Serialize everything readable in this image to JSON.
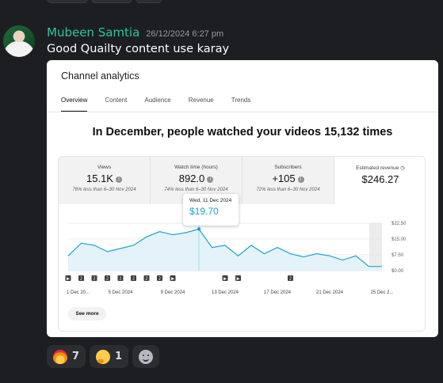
{
  "message": {
    "author": "Mubeen Samtia",
    "timestamp": "26/12/2024 6:27 pm",
    "text": "Good Quailty content use karay"
  },
  "embed": {
    "title": "Channel analytics",
    "tabs": [
      "Overview",
      "Content",
      "Audience",
      "Revenue",
      "Trends"
    ],
    "active_tab": "Overview",
    "headline": "In December, people watched your videos 15,132 times",
    "stats": [
      {
        "label": "Views",
        "value": "15.1K",
        "sub": "76% less than 6–30 Nov 2024"
      },
      {
        "label": "Watch time (hours)",
        "value": "892.0",
        "sub": "74% less than 6–30 Nov 2024"
      },
      {
        "label": "Subscribers",
        "value": "+105",
        "sub": "72% less than 6–30 Nov 2024"
      },
      {
        "label": "Estimated revenue",
        "value": "$246.27",
        "sub": ""
      }
    ],
    "see_more_label": "See more"
  },
  "chart_data": {
    "type": "area",
    "series": [
      {
        "values": [
          7.0,
          13.0,
          12.0,
          9.0,
          10.5,
          12.0,
          16.0,
          18.5,
          17.0,
          18.0,
          19.7,
          11.0,
          12.0,
          7.0,
          12.0,
          8.0,
          11.0,
          8.0,
          6.5,
          8.0,
          7.0,
          5.0,
          7.0,
          2.0,
          2.0
        ]
      }
    ],
    "x_tick_labels": [
      "1 Dec 20...",
      "5 Dec 2024",
      "9 Dec 2024",
      "13 Dec 2024",
      "17 Dec 2024",
      "21 Dec 2024",
      "25 Dec 2..."
    ],
    "y_tick_labels": [
      "$0.00",
      "$7.50",
      "$15.00",
      "$22.50"
    ],
    "ylim": [
      0,
      22.5
    ],
    "color": "#1ea3c9",
    "tooltip": {
      "date": "Wed, 11 Dec 2024",
      "value": "$19.70",
      "index": 10
    },
    "marker_days": [
      1,
      2,
      3,
      4,
      5,
      6,
      7,
      8,
      9,
      13,
      14,
      18
    ],
    "marker_labels": [
      "▶",
      "2",
      "2",
      "2",
      "2",
      "2",
      "2",
      "2",
      "▶",
      "▶",
      "▶",
      "2"
    ]
  },
  "reactions": [
    {
      "icon": "fire-emoji",
      "count": "7"
    },
    {
      "icon": "thinking-emoji",
      "count": "1"
    }
  ],
  "colors": {
    "author": "#2ec796",
    "background": "#1d1e22",
    "accent": "#1ea3c9"
  }
}
